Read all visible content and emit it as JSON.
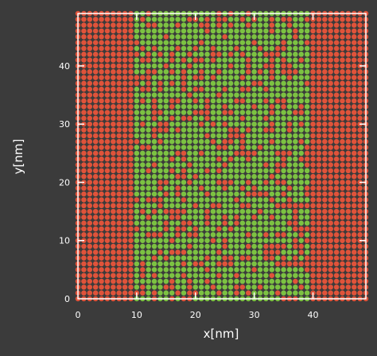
{
  "chart_data": {
    "type": "scatter",
    "xlabel": "x[nm]",
    "ylabel": "y[nm]",
    "xlim": [
      0,
      49
    ],
    "ylim": [
      0,
      49
    ],
    "x_ticks": [
      0,
      10,
      20,
      30,
      40
    ],
    "y_ticks": [
      0,
      10,
      20,
      30,
      40
    ],
    "grid": false,
    "lattice_spacing_nm": 1,
    "region_boundaries_x_nm": [
      10,
      39
    ],
    "series": [
      {
        "color": "#e0533a",
        "region": "x < 10 and x > 39",
        "fill_fraction": 1.0
      },
      {
        "color": "#7cc242",
        "region": "10 <= x <= 39",
        "fill_fraction": 0.72
      }
    ],
    "colors": {
      "background": "#3b3b3b",
      "frame": "#ffffff",
      "text": "#ffffff"
    }
  }
}
